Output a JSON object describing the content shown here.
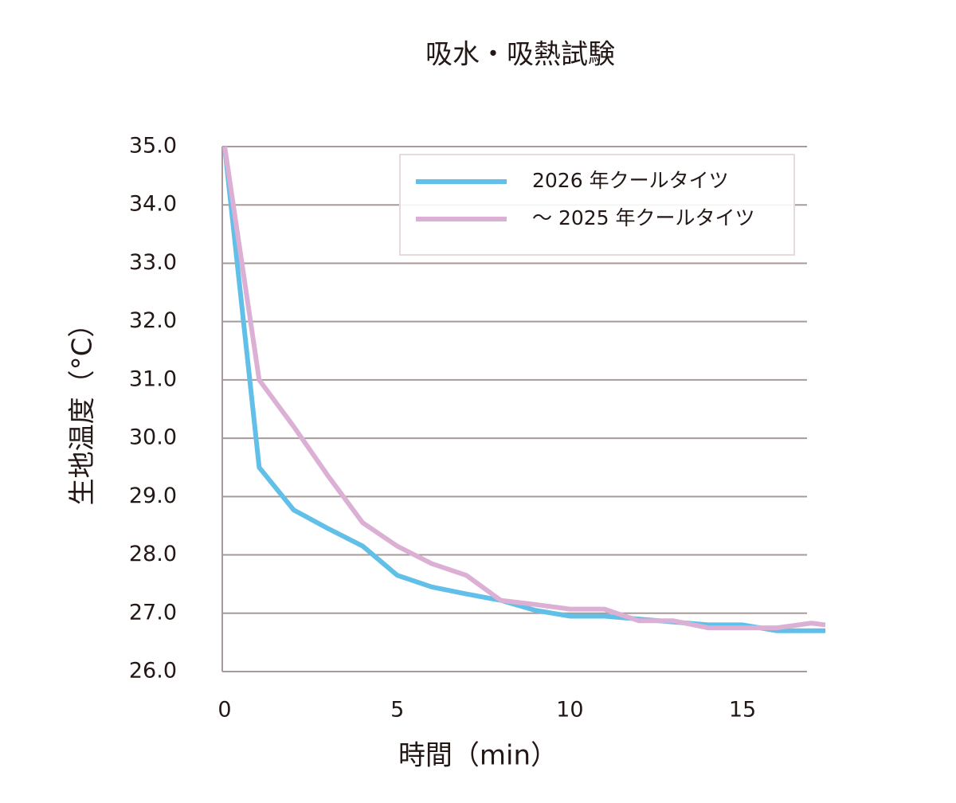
{
  "chart_data": {
    "type": "line",
    "title": "吸水・吸熱試験",
    "x_label": "時間（min）",
    "y_label": "生地温度（°C）",
    "x": [
      0,
      1,
      2,
      3,
      4,
      5,
      6,
      7,
      8,
      9,
      10,
      11,
      12,
      13,
      14,
      15,
      16,
      17,
      17.4
    ],
    "series": [
      {
        "name": "2026 年クールタイツ",
        "color": "#62c0e8",
        "values": [
          35.0,
          29.5,
          28.77,
          28.45,
          28.15,
          27.65,
          27.45,
          27.33,
          27.22,
          27.05,
          26.95,
          26.95,
          26.9,
          26.85,
          26.8,
          26.8,
          26.7,
          26.7,
          26.7
        ]
      },
      {
        "name": "～ 2025 年クールタイツ",
        "color": "#dcb0d4",
        "values": [
          35.0,
          31.0,
          30.2,
          29.35,
          28.55,
          28.15,
          27.85,
          27.65,
          27.22,
          27.15,
          27.07,
          27.07,
          26.87,
          26.87,
          26.75,
          26.75,
          26.75,
          26.83,
          26.8
        ]
      }
    ],
    "xlim": [
      0,
      17.4
    ],
    "xticks": [
      0,
      5,
      10,
      15
    ],
    "ylim": [
      26,
      35
    ],
    "yticks": [
      {
        "value": 26,
        "label": "26.0"
      },
      {
        "value": 27,
        "label": "27.0"
      },
      {
        "value": 28,
        "label": "28.0"
      },
      {
        "value": 29,
        "label": "29.0"
      },
      {
        "value": 30,
        "label": "30.0"
      },
      {
        "value": 31,
        "label": "31.0"
      },
      {
        "value": 32,
        "label": "32.0"
      },
      {
        "value": 33,
        "label": "33.0"
      },
      {
        "value": 34,
        "label": "34.0"
      },
      {
        "value": 35,
        "label": "35.0"
      }
    ],
    "grid": true,
    "legend": "upper right"
  }
}
